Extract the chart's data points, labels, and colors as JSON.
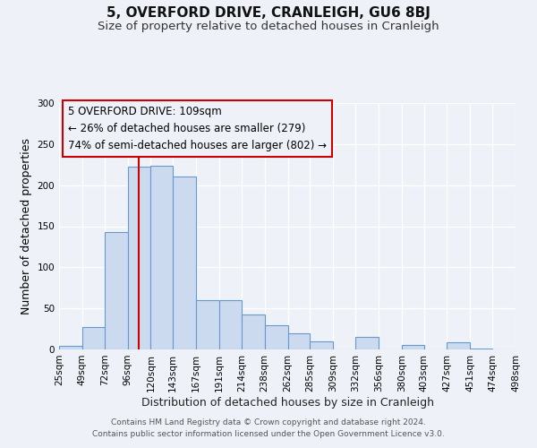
{
  "title": "5, OVERFORD DRIVE, CRANLEIGH, GU6 8BJ",
  "subtitle": "Size of property relative to detached houses in Cranleigh",
  "xlabel": "Distribution of detached houses by size in Cranleigh",
  "ylabel": "Number of detached properties",
  "footer_lines": [
    "Contains HM Land Registry data © Crown copyright and database right 2024.",
    "Contains public sector information licensed under the Open Government Licence v3.0."
  ],
  "bar_values": [
    4,
    27,
    143,
    222,
    224,
    210,
    60,
    60,
    43,
    30,
    20,
    10,
    0,
    15,
    0,
    5,
    0,
    9,
    1,
    0
  ],
  "bar_labels": [
    "25sqm",
    "49sqm",
    "72sqm",
    "96sqm",
    "120sqm",
    "143sqm",
    "167sqm",
    "191sqm",
    "214sqm",
    "238sqm",
    "262sqm",
    "285sqm",
    "309sqm",
    "332sqm",
    "356sqm",
    "380sqm",
    "403sqm",
    "427sqm",
    "451sqm",
    "474sqm",
    "498sqm"
  ],
  "bar_color": "#ccdaf0",
  "bar_edge_color": "#6699cc",
  "vline_x": 108,
  "vline_color": "#cc0000",
  "annotation_box_text": "5 OVERFORD DRIVE: 109sqm\n← 26% of detached houses are smaller (279)\n74% of semi-detached houses are larger (802) →",
  "annotation_box_edge_color": "#cc0000",
  "ylim": [
    0,
    300
  ],
  "yticks": [
    0,
    50,
    100,
    150,
    200,
    250,
    300
  ],
  "background_color": "#eef2f8",
  "grid_color": "#ffffff",
  "title_fontsize": 11,
  "subtitle_fontsize": 9.5,
  "axis_label_fontsize": 9,
  "tick_fontsize": 7.5,
  "annotation_fontsize": 8.5,
  "footer_fontsize": 6.5
}
